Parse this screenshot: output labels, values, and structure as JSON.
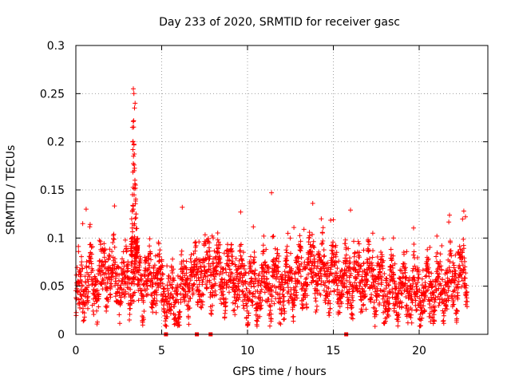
{
  "chart_data": {
    "type": "scatter",
    "title": "Day 233 of 2020, SRMTID for receiver gasc",
    "xlabel": "GPS time / hours",
    "ylabel": "SRMTID / TECUs",
    "xlim": [
      0,
      24
    ],
    "ylim": [
      0,
      0.3
    ],
    "xticks": [
      0,
      5,
      10,
      15,
      20
    ],
    "yticks": [
      0,
      0.05,
      0.1,
      0.15,
      0.2,
      0.25,
      0.3
    ],
    "xtick_labels": [
      "0",
      "5",
      "10",
      "15",
      "20"
    ],
    "ytick_labels": [
      "0",
      "0.05",
      "0.1",
      "0.15",
      "0.2",
      "0.25",
      "0.3"
    ],
    "grid": true,
    "marker": "+",
    "marker_color": "#ff0000",
    "series": [
      {
        "name": "SRMTID",
        "x_range": [
          0,
          22.8
        ],
        "x_step_hours": 0.00833,
        "typical_range": [
          0.02,
          0.1
        ],
        "baseline_points": [
          [
            0,
            0.035
          ],
          [
            0.5,
            0.055
          ],
          [
            1,
            0.05
          ],
          [
            1.5,
            0.06
          ],
          [
            2,
            0.065
          ],
          [
            2.5,
            0.055
          ],
          [
            3,
            0.055
          ],
          [
            3.5,
            0.06
          ],
          [
            4,
            0.055
          ],
          [
            4.5,
            0.06
          ],
          [
            5,
            0.05
          ],
          [
            5.5,
            0.035
          ],
          [
            6,
            0.04
          ],
          [
            6.5,
            0.055
          ],
          [
            7,
            0.06
          ],
          [
            7.5,
            0.065
          ],
          [
            8,
            0.065
          ],
          [
            8.5,
            0.06
          ],
          [
            9,
            0.06
          ],
          [
            9.5,
            0.055
          ],
          [
            10,
            0.05
          ],
          [
            10.5,
            0.045
          ],
          [
            11,
            0.05
          ],
          [
            11.5,
            0.05
          ],
          [
            12,
            0.045
          ],
          [
            12.5,
            0.055
          ],
          [
            13,
            0.06
          ],
          [
            13.5,
            0.065
          ],
          [
            14,
            0.065
          ],
          [
            14.5,
            0.06
          ],
          [
            15,
            0.06
          ],
          [
            15.5,
            0.055
          ],
          [
            16,
            0.055
          ],
          [
            16.5,
            0.06
          ],
          [
            17,
            0.055
          ],
          [
            17.5,
            0.05
          ],
          [
            18,
            0.045
          ],
          [
            18.5,
            0.045
          ],
          [
            19,
            0.045
          ],
          [
            19.5,
            0.045
          ],
          [
            20,
            0.04
          ],
          [
            20.5,
            0.045
          ],
          [
            21,
            0.045
          ],
          [
            21.5,
            0.05
          ],
          [
            22,
            0.055
          ],
          [
            22.5,
            0.06
          ],
          [
            22.8,
            0.065
          ]
        ],
        "spike_points": [
          [
            3.35,
            0.255
          ],
          [
            3.38,
            0.25
          ],
          [
            3.42,
            0.235
          ],
          [
            3.45,
            0.24
          ],
          [
            3.3,
            0.215
          ],
          [
            3.32,
            0.2
          ],
          [
            3.36,
            0.185
          ],
          [
            3.4,
            0.17
          ],
          [
            3.44,
            0.16
          ],
          [
            3.48,
            0.155
          ],
          [
            3.3,
            0.145
          ],
          [
            3.35,
            0.13
          ],
          [
            3.5,
            0.125
          ],
          [
            3.55,
            0.11
          ],
          [
            3.25,
            0.12
          ],
          [
            11.4,
            0.147
          ],
          [
            0.4,
            0.115
          ],
          [
            0.6,
            0.13
          ],
          [
            6.2,
            0.132
          ],
          [
            9.6,
            0.127
          ],
          [
            13.8,
            0.136
          ],
          [
            14.3,
            0.12
          ],
          [
            15.0,
            0.119
          ],
          [
            16.0,
            0.129
          ],
          [
            17.3,
            0.105
          ],
          [
            18.5,
            0.1
          ],
          [
            22.6,
            0.128
          ],
          [
            22.7,
            0.122
          ],
          [
            12.7,
            0.111
          ],
          [
            8.0,
            0.1
          ]
        ],
        "zero_points": [
          5.25,
          7.05,
          7.85,
          15.75
        ]
      }
    ]
  }
}
